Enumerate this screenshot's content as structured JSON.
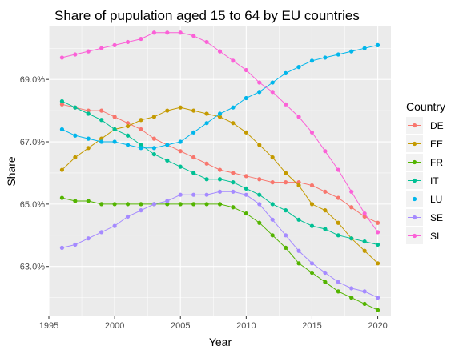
{
  "chart_data": {
    "type": "line",
    "title": "Share of pupulation aged 15 to 64 by EU countries",
    "xlabel": "Year",
    "ylabel": "Share",
    "x": [
      1996,
      1997,
      1998,
      1999,
      2000,
      2001,
      2002,
      2003,
      2004,
      2005,
      2006,
      2007,
      2008,
      2009,
      2010,
      2011,
      2012,
      2013,
      2014,
      2015,
      2016,
      2017,
      2018,
      2019,
      2020
    ],
    "xlim": [
      1995,
      2021
    ],
    "ylim": [
      61.4,
      70.7
    ],
    "x_ticks": [
      1995,
      2000,
      2005,
      2010,
      2015,
      2020
    ],
    "x_tick_labels": [
      "1995",
      "2000",
      "2005",
      "2010",
      "2015",
      "2020"
    ],
    "y_ticks": [
      63,
      65,
      67,
      69
    ],
    "y_tick_labels": [
      "63.0%",
      "65.0%",
      "67.0%",
      "69.0%"
    ],
    "grid": true,
    "legend_title": "Country",
    "legend_position": "right",
    "series": [
      {
        "name": "DE",
        "color": "#F8766D",
        "values": [
          68.2,
          68.1,
          68.0,
          68.0,
          67.8,
          67.6,
          67.4,
          67.1,
          66.9,
          66.7,
          66.5,
          66.3,
          66.1,
          66.0,
          65.9,
          65.8,
          65.7,
          65.7,
          65.7,
          65.6,
          65.4,
          65.2,
          64.9,
          64.6,
          64.4
        ]
      },
      {
        "name": "EE",
        "color": "#C49A00",
        "values": [
          66.1,
          66.5,
          66.8,
          67.1,
          67.4,
          67.5,
          67.7,
          67.8,
          68.0,
          68.1,
          68.0,
          67.9,
          67.8,
          67.6,
          67.3,
          66.9,
          66.5,
          66.0,
          65.6,
          65.0,
          64.8,
          64.4,
          63.9,
          63.5,
          63.1
        ]
      },
      {
        "name": "FR",
        "color": "#53B400",
        "values": [
          65.2,
          65.1,
          65.1,
          65.0,
          65.0,
          65.0,
          65.0,
          65.0,
          65.0,
          65.0,
          65.0,
          65.0,
          65.0,
          64.9,
          64.7,
          64.4,
          64.0,
          63.6,
          63.1,
          62.8,
          62.5,
          62.2,
          62.0,
          61.8,
          61.6
        ]
      },
      {
        "name": "IT",
        "color": "#00C094",
        "values": [
          68.3,
          68.1,
          67.9,
          67.7,
          67.4,
          67.2,
          66.9,
          66.6,
          66.4,
          66.2,
          66.0,
          65.8,
          65.8,
          65.7,
          65.5,
          65.3,
          65.0,
          64.8,
          64.5,
          64.3,
          64.2,
          64.0,
          63.9,
          63.8,
          63.7
        ]
      },
      {
        "name": "LU",
        "color": "#00B6EB",
        "values": [
          67.4,
          67.2,
          67.1,
          67.0,
          67.0,
          66.9,
          66.8,
          66.8,
          66.9,
          67.0,
          67.3,
          67.6,
          67.9,
          68.1,
          68.4,
          68.6,
          68.9,
          69.2,
          69.4,
          69.6,
          69.7,
          69.8,
          69.9,
          70.0,
          70.1
        ]
      },
      {
        "name": "SE",
        "color": "#A58AFF",
        "values": [
          63.6,
          63.7,
          63.9,
          64.1,
          64.3,
          64.6,
          64.8,
          65.0,
          65.1,
          65.3,
          65.3,
          65.3,
          65.4,
          65.4,
          65.3,
          65.0,
          64.5,
          64.0,
          63.5,
          63.1,
          62.8,
          62.5,
          62.3,
          62.2,
          62.0
        ]
      },
      {
        "name": "SI",
        "color": "#FB61D7",
        "values": [
          69.7,
          69.8,
          69.9,
          70.0,
          70.1,
          70.2,
          70.3,
          70.5,
          70.5,
          70.5,
          70.4,
          70.2,
          69.9,
          69.6,
          69.3,
          68.9,
          68.6,
          68.2,
          67.8,
          67.3,
          66.7,
          66.1,
          65.4,
          64.7,
          64.1
        ]
      }
    ]
  }
}
